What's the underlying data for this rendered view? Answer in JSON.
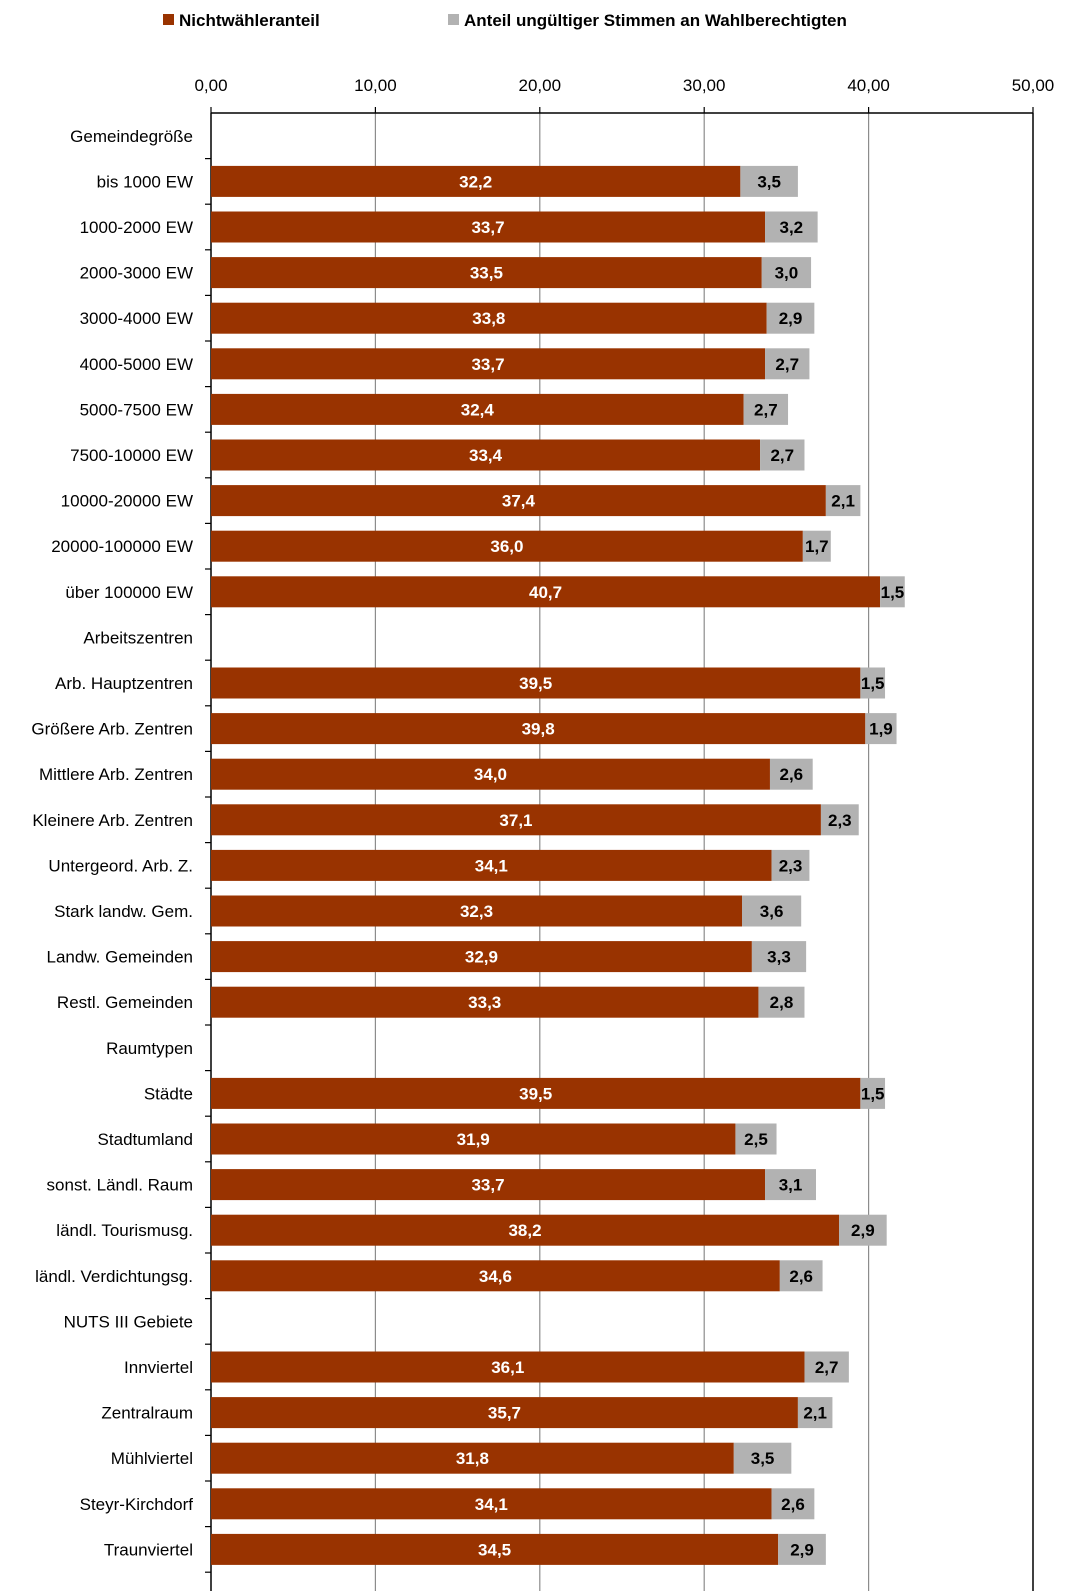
{
  "chart_data": {
    "type": "bar",
    "orientation": "horizontal",
    "stacked": true,
    "xlim": [
      0,
      50
    ],
    "xticks": [
      "0,00",
      "10,00",
      "20,00",
      "30,00",
      "40,00",
      "50,00"
    ],
    "legend_position": "top",
    "grid": true,
    "colors": {
      "Nichtwähleranteil": "#993300",
      "Anteil ungültiger Stimmen an Wahlberechtigten": "#b2b2b2"
    },
    "series": [
      {
        "name": "Nichtwähleranteil"
      },
      {
        "name": "Anteil ungültiger Stimmen an Wahlberechtigten"
      }
    ],
    "categories": [
      {
        "label": "Gemeindegröße",
        "a": null,
        "b": null,
        "a_label": "",
        "b_label": ""
      },
      {
        "label": "bis 1000 EW",
        "a": 32.2,
        "b": 3.5,
        "a_label": "32,2",
        "b_label": "3,5"
      },
      {
        "label": "1000-2000 EW",
        "a": 33.7,
        "b": 3.2,
        "a_label": "33,7",
        "b_label": "3,2"
      },
      {
        "label": "2000-3000 EW",
        "a": 33.5,
        "b": 3.0,
        "a_label": "33,5",
        "b_label": "3,0"
      },
      {
        "label": "3000-4000 EW",
        "a": 33.8,
        "b": 2.9,
        "a_label": "33,8",
        "b_label": "2,9"
      },
      {
        "label": "4000-5000 EW",
        "a": 33.7,
        "b": 2.7,
        "a_label": "33,7",
        "b_label": "2,7"
      },
      {
        "label": "5000-7500 EW",
        "a": 32.4,
        "b": 2.7,
        "a_label": "32,4",
        "b_label": "2,7"
      },
      {
        "label": "7500-10000 EW",
        "a": 33.4,
        "b": 2.7,
        "a_label": "33,4",
        "b_label": "2,7"
      },
      {
        "label": "10000-20000 EW",
        "a": 37.4,
        "b": 2.1,
        "a_label": "37,4",
        "b_label": "2,1"
      },
      {
        "label": "20000-100000 EW",
        "a": 36.0,
        "b": 1.7,
        "a_label": "36,0",
        "b_label": "1,7"
      },
      {
        "label": "über 100000 EW",
        "a": 40.7,
        "b": 1.5,
        "a_label": "40,7",
        "b_label": "1,5"
      },
      {
        "label": "Arbeitszentren",
        "a": null,
        "b": null,
        "a_label": "",
        "b_label": ""
      },
      {
        "label": "Arb. Hauptzentren",
        "a": 39.5,
        "b": 1.5,
        "a_label": "39,5",
        "b_label": "1,5"
      },
      {
        "label": "Größere Arb. Zentren",
        "a": 39.8,
        "b": 1.9,
        "a_label": "39,8",
        "b_label": "1,9"
      },
      {
        "label": "Mittlere Arb. Zentren",
        "a": 34.0,
        "b": 2.6,
        "a_label": "34,0",
        "b_label": "2,6"
      },
      {
        "label": "Kleinere Arb. Zentren",
        "a": 37.1,
        "b": 2.3,
        "a_label": "37,1",
        "b_label": "2,3"
      },
      {
        "label": "Untergeord. Arb. Z.",
        "a": 34.1,
        "b": 2.3,
        "a_label": "34,1",
        "b_label": "2,3"
      },
      {
        "label": "Stark landw. Gem.",
        "a": 32.3,
        "b": 3.6,
        "a_label": "32,3",
        "b_label": "3,6"
      },
      {
        "label": "Landw. Gemeinden",
        "a": 32.9,
        "b": 3.3,
        "a_label": "32,9",
        "b_label": "3,3"
      },
      {
        "label": "Restl. Gemeinden",
        "a": 33.3,
        "b": 2.8,
        "a_label": "33,3",
        "b_label": "2,8"
      },
      {
        "label": "Raumtypen",
        "a": null,
        "b": null,
        "a_label": "",
        "b_label": ""
      },
      {
        "label": "Städte",
        "a": 39.5,
        "b": 1.5,
        "a_label": "39,5",
        "b_label": "1,5"
      },
      {
        "label": "Stadtumland",
        "a": 31.9,
        "b": 2.5,
        "a_label": "31,9",
        "b_label": "2,5"
      },
      {
        "label": "sonst. Ländl. Raum",
        "a": 33.7,
        "b": 3.1,
        "a_label": "33,7",
        "b_label": "3,1"
      },
      {
        "label": "ländl. Tourismusg.",
        "a": 38.2,
        "b": 2.9,
        "a_label": "38,2",
        "b_label": "2,9"
      },
      {
        "label": "ländl. Verdichtungsg.",
        "a": 34.6,
        "b": 2.6,
        "a_label": "34,6",
        "b_label": "2,6"
      },
      {
        "label": "NUTS III Gebiete",
        "a": null,
        "b": null,
        "a_label": "",
        "b_label": ""
      },
      {
        "label": "Innviertel",
        "a": 36.1,
        "b": 2.7,
        "a_label": "36,1",
        "b_label": "2,7"
      },
      {
        "label": "Zentralraum",
        "a": 35.7,
        "b": 2.1,
        "a_label": "35,7",
        "b_label": "2,1"
      },
      {
        "label": "Mühlviertel",
        "a": 31.8,
        "b": 3.5,
        "a_label": "31,8",
        "b_label": "3,5"
      },
      {
        "label": "Steyr-Kirchdorf",
        "a": 34.1,
        "b": 2.6,
        "a_label": "34,1",
        "b_label": "2,6"
      },
      {
        "label": "Traunviertel",
        "a": 34.5,
        "b": 2.9,
        "a_label": "34,5",
        "b_label": "2,9"
      }
    ]
  }
}
